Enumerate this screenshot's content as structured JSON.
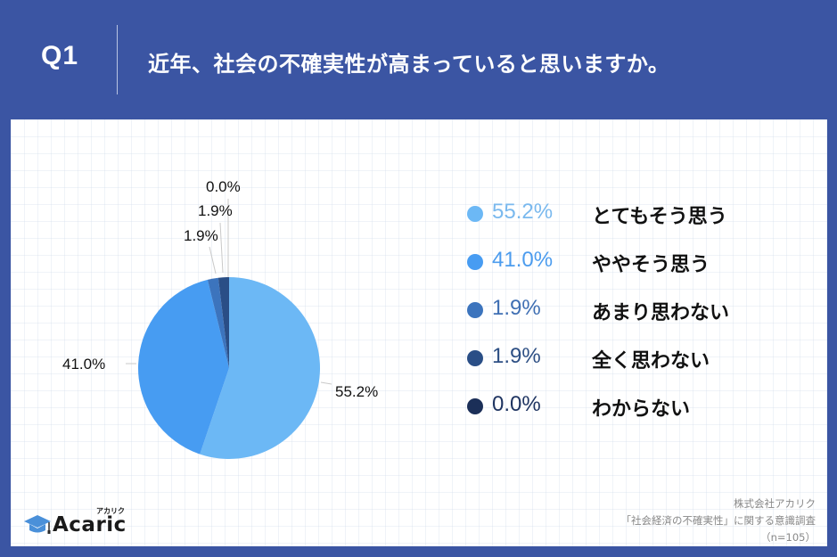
{
  "header": {
    "question_number": "Q1",
    "question_text": "近年、社会の不確実性が高まっていると思いますか。"
  },
  "colors": {
    "frame": "#3b55a3",
    "panel": "#ffffff"
  },
  "chart_data": {
    "type": "pie",
    "title": "近年、社会の不確実性が高まっていると思いますか。",
    "categories": [
      "とてもそう思う",
      "ややそう思う",
      "あまり思わない",
      "全く思わない",
      "わからない"
    ],
    "values": [
      55.2,
      41.0,
      1.9,
      1.9,
      0.0
    ],
    "colors": [
      "#6cb8f5",
      "#479cf2",
      "#3c74bd",
      "#2a4e86",
      "#1b2f58"
    ],
    "slice_labels": [
      "55.2%",
      "41.0%",
      "1.9%",
      "1.9%",
      "0.0%"
    ],
    "start_angle": "12 o'clock, clockwise",
    "legend_position": "right",
    "n": 105
  },
  "legend": [
    {
      "pct": "55.2%",
      "label": "とてもそう思う",
      "color": "#6cb8f5",
      "text_color": "#7ab9ee"
    },
    {
      "pct": "41.0%",
      "label": "ややそう思う",
      "color": "#479cf2",
      "text_color": "#4c9cee"
    },
    {
      "pct": "1.9%",
      "label": "あまり思わない",
      "color": "#3c74bd",
      "text_color": "#3f6fb3"
    },
    {
      "pct": "1.9%",
      "label": "全く思わない",
      "color": "#2a4e86",
      "text_color": "#2d4f84"
    },
    {
      "pct": "0.0%",
      "label": "わからない",
      "color": "#1b2f58",
      "text_color": "#1e3461"
    }
  ],
  "pie_labels": {
    "l0": "55.2%",
    "l1": "41.0%",
    "l2": "1.9%",
    "l3": "1.9%",
    "l4": "0.0%"
  },
  "logo": {
    "name": "Acaric",
    "kana": "アカリク"
  },
  "source": {
    "line1": "株式会社アカリク",
    "line2": "「社会経済の不確実性」に関する意識調査",
    "line3": "（n=105）"
  }
}
